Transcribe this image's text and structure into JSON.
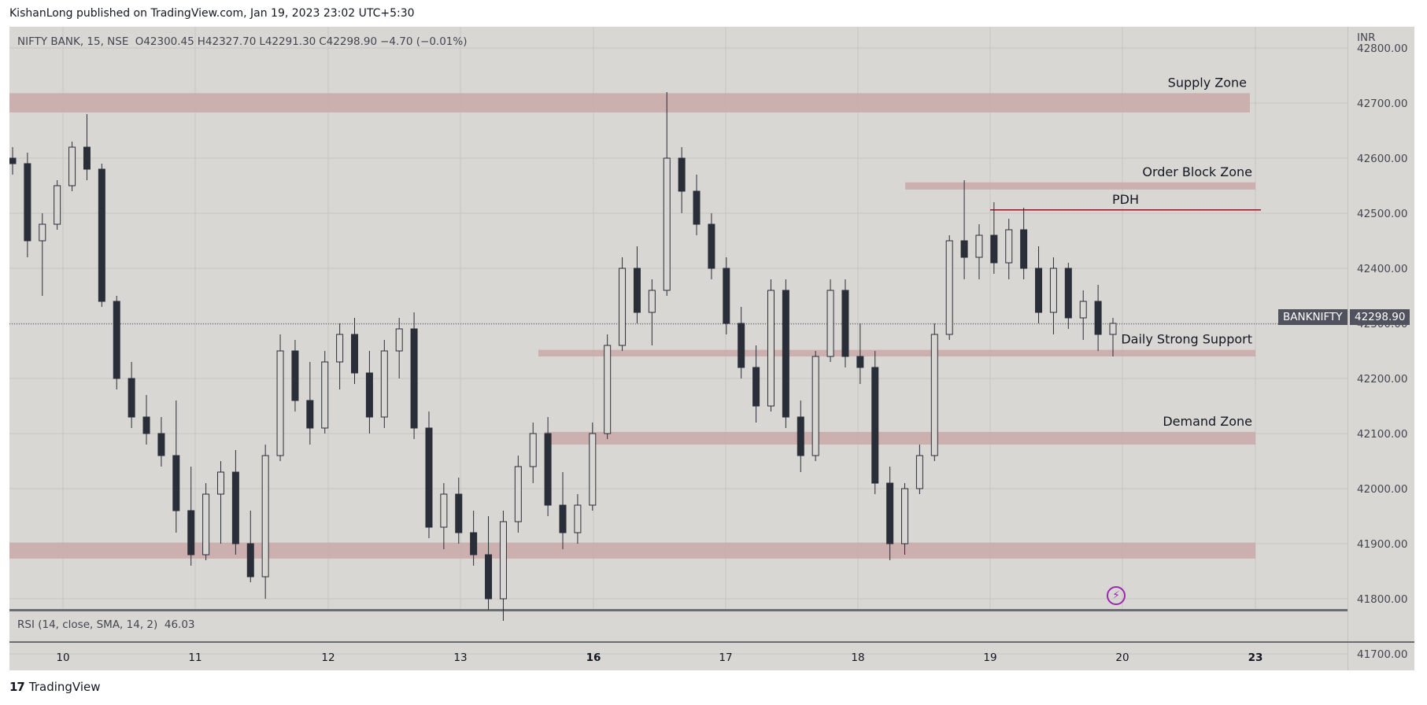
{
  "publisher_line": "KishanLong published on TradingView.com, Jan 19, 2023 23:02 UTC+5:30",
  "legend": {
    "symbol": "NIFTY BANK, 15, NSE",
    "open": "O42300.45",
    "high": "H42327.70",
    "low": "L42291.30",
    "close": "C42298.90",
    "change": "−4.70 (−0.01%)"
  },
  "rsi_legend": {
    "label": "RSI (14, close, SMA, 14, 2)",
    "value": "46.03"
  },
  "currency": "INR",
  "price_tag": {
    "symbol": "BANKNIFTY",
    "value": "42298.90"
  },
  "footer_brand": "TradingView",
  "colors": {
    "background": "#d9d7d3",
    "zone": "#c9a9a8",
    "pdh_line": "#8b1a1a",
    "candle": "#2a2e39",
    "accent": "#9c27b0"
  },
  "chart_data": {
    "type": "candlestick",
    "ylim": [
      41700,
      42850
    ],
    "y_ticks": [
      "42800.00",
      "42700.00",
      "42600.00",
      "42500.00",
      "42400.00",
      "42300.00",
      "42200.00",
      "42100.00",
      "42000.00",
      "41900.00",
      "41800.00",
      "41700.00"
    ],
    "x_ticks": [
      "10",
      "11",
      "12",
      "13",
      "16",
      "17",
      "18",
      "19",
      "20",
      "23"
    ],
    "zones": [
      {
        "label": "Supply Zone",
        "from_day": "10",
        "price_low": 42683,
        "price_high": 42718
      },
      {
        "label": "Order Block Zone",
        "from_day": "18",
        "price_low": 42543,
        "price_high": 42556
      },
      {
        "label": "Daily Strong Support",
        "from_day": "13",
        "price_low": 42240,
        "price_high": 42252
      },
      {
        "label": "Demand Zone",
        "from_day": "13",
        "price_low": 42080,
        "price_high": 42103
      },
      {
        "label": "",
        "from_day": "10",
        "price_low": 41873,
        "price_high": 41902
      }
    ],
    "lines": [
      {
        "label": "PDH",
        "from_day": "19",
        "price": 42506
      }
    ],
    "last_close": 42298.9,
    "ohlc_approx": [
      [
        42600,
        42620,
        42570,
        42590
      ],
      [
        42590,
        42610,
        42420,
        42450
      ],
      [
        42450,
        42500,
        42350,
        42480
      ],
      [
        42480,
        42560,
        42470,
        42550
      ],
      [
        42550,
        42630,
        42540,
        42620
      ],
      [
        42620,
        42680,
        42560,
        42580
      ],
      [
        42580,
        42590,
        42330,
        42340
      ],
      [
        42340,
        42350,
        42180,
        42200
      ],
      [
        42200,
        42230,
        42110,
        42130
      ],
      [
        42130,
        42170,
        42080,
        42100
      ],
      [
        42100,
        42130,
        42040,
        42060
      ],
      [
        42060,
        42160,
        41920,
        41960
      ],
      [
        41960,
        42040,
        41860,
        41880
      ],
      [
        41880,
        42010,
        41870,
        41990
      ],
      [
        41990,
        42050,
        41900,
        42030
      ],
      [
        42030,
        42070,
        41880,
        41900
      ],
      [
        41900,
        41960,
        41830,
        41840
      ],
      [
        41840,
        42080,
        41800,
        42060
      ],
      [
        42060,
        42280,
        42050,
        42250
      ],
      [
        42250,
        42270,
        42140,
        42160
      ],
      [
        42160,
        42230,
        42080,
        42110
      ],
      [
        42110,
        42250,
        42100,
        42230
      ],
      [
        42230,
        42300,
        42180,
        42280
      ],
      [
        42280,
        42310,
        42190,
        42210
      ],
      [
        42210,
        42250,
        42100,
        42130
      ],
      [
        42130,
        42270,
        42110,
        42250
      ],
      [
        42250,
        42310,
        42200,
        42290
      ],
      [
        42290,
        42320,
        42090,
        42110
      ],
      [
        42110,
        42140,
        41910,
        41930
      ],
      [
        41930,
        42010,
        41890,
        41990
      ],
      [
        41990,
        42020,
        41900,
        41920
      ],
      [
        41920,
        41960,
        41860,
        41880
      ],
      [
        41880,
        41950,
        41780,
        41800
      ],
      [
        41800,
        41960,
        41760,
        41940
      ],
      [
        41940,
        42060,
        41920,
        42040
      ],
      [
        42040,
        42120,
        42010,
        42100
      ],
      [
        42100,
        42130,
        41950,
        41970
      ],
      [
        41970,
        42030,
        41890,
        41920
      ],
      [
        41920,
        41990,
        41900,
        41970
      ],
      [
        41970,
        42120,
        41960,
        42100
      ],
      [
        42100,
        42280,
        42090,
        42260
      ],
      [
        42260,
        42420,
        42250,
        42400
      ],
      [
        42400,
        42440,
        42300,
        42320
      ],
      [
        42320,
        42380,
        42260,
        42360
      ],
      [
        42360,
        42720,
        42350,
        42600
      ],
      [
        42600,
        42620,
        42500,
        42540
      ],
      [
        42540,
        42570,
        42460,
        42480
      ],
      [
        42480,
        42500,
        42380,
        42400
      ],
      [
        42400,
        42420,
        42280,
        42300
      ],
      [
        42300,
        42330,
        42200,
        42220
      ],
      [
        42220,
        42260,
        42120,
        42150
      ],
      [
        42150,
        42380,
        42140,
        42360
      ],
      [
        42360,
        42380,
        42110,
        42130
      ],
      [
        42130,
        42160,
        42030,
        42060
      ],
      [
        42060,
        42250,
        42050,
        42240
      ],
      [
        42240,
        42380,
        42230,
        42360
      ],
      [
        42360,
        42380,
        42220,
        42240
      ],
      [
        42240,
        42300,
        42190,
        42220
      ],
      [
        42220,
        42250,
        41990,
        42010
      ],
      [
        42010,
        42040,
        41870,
        41900
      ],
      [
        41900,
        42010,
        41880,
        42000
      ],
      [
        42000,
        42080,
        41990,
        42060
      ],
      [
        42060,
        42300,
        42050,
        42280
      ],
      [
        42280,
        42460,
        42270,
        42450
      ],
      [
        42450,
        42560,
        42380,
        42420
      ],
      [
        42420,
        42480,
        42380,
        42460
      ],
      [
        42460,
        42520,
        42390,
        42410
      ],
      [
        42410,
        42490,
        42380,
        42470
      ],
      [
        42470,
        42510,
        42380,
        42400
      ],
      [
        42400,
        42440,
        42300,
        42320
      ],
      [
        42320,
        42420,
        42280,
        42400
      ],
      [
        42400,
        42410,
        42290,
        42310
      ],
      [
        42310,
        42360,
        42270,
        42340
      ],
      [
        42340,
        42370,
        42250,
        42280
      ],
      [
        42280,
        42310,
        42240,
        42300
      ]
    ]
  }
}
